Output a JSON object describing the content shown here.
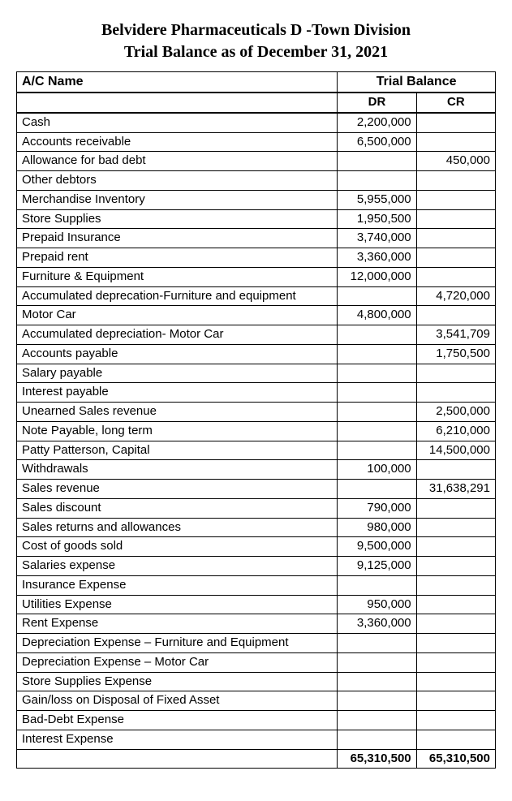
{
  "header": {
    "line1": "Belvidere Pharmaceuticals D -Town Division",
    "line2": "Trial Balance as of December 31, 2021"
  },
  "table": {
    "col_ac_name": "A/C Name",
    "col_trial_balance": "Trial Balance",
    "col_dr": "DR",
    "col_cr": "CR",
    "rows": [
      {
        "name": "Cash",
        "dr": "2,200,000",
        "cr": ""
      },
      {
        "name": "Accounts receivable",
        "dr": "6,500,000",
        "cr": ""
      },
      {
        "name": "Allowance for bad debt",
        "dr": "",
        "cr": "450,000"
      },
      {
        "name": "Other debtors",
        "dr": "",
        "cr": ""
      },
      {
        "name": "Merchandise Inventory",
        "dr": "5,955,000",
        "cr": ""
      },
      {
        "name": "Store Supplies",
        "dr": "1,950,500",
        "cr": ""
      },
      {
        "name": "Prepaid Insurance",
        "dr": "3,740,000",
        "cr": ""
      },
      {
        "name": "Prepaid rent",
        "dr": "3,360,000",
        "cr": ""
      },
      {
        "name": "Furniture & Equipment",
        "dr": "12,000,000",
        "cr": ""
      },
      {
        "name": "Accumulated deprecation-Furniture and equipment",
        "dr": "",
        "cr": "4,720,000"
      },
      {
        "name": "Motor Car",
        "dr": "4,800,000",
        "cr": ""
      },
      {
        "name": "Accumulated depreciation- Motor Car",
        "dr": "",
        "cr": "3,541,709"
      },
      {
        "name": "Accounts payable",
        "dr": "",
        "cr": "1,750,500"
      },
      {
        "name": "Salary payable",
        "dr": "",
        "cr": ""
      },
      {
        "name": "Interest payable",
        "dr": "",
        "cr": ""
      },
      {
        "name": "Unearned Sales revenue",
        "dr": "",
        "cr": "2,500,000"
      },
      {
        "name": "Note Payable, long term",
        "dr": "",
        "cr": "6,210,000"
      },
      {
        "name": "Patty Patterson, Capital",
        "dr": "",
        "cr": "14,500,000"
      },
      {
        "name": "Withdrawals",
        "dr": "100,000",
        "cr": ""
      },
      {
        "name": "Sales revenue",
        "dr": "",
        "cr": "31,638,291"
      },
      {
        "name": "Sales discount",
        "dr": "790,000",
        "cr": ""
      },
      {
        "name": "Sales returns and allowances",
        "dr": "980,000",
        "cr": ""
      },
      {
        "name": "Cost of goods sold",
        "dr": "9,500,000",
        "cr": ""
      },
      {
        "name": "Salaries expense",
        "dr": "9,125,000",
        "cr": ""
      },
      {
        "name": "Insurance Expense",
        "dr": "",
        "cr": ""
      },
      {
        "name": "Utilities Expense",
        "dr": "950,000",
        "cr": ""
      },
      {
        "name": "Rent Expense",
        "dr": "3,360,000",
        "cr": ""
      },
      {
        "name": "Depreciation Expense – Furniture and Equipment",
        "dr": "",
        "cr": ""
      },
      {
        "name": "Depreciation Expense – Motor Car",
        "dr": "",
        "cr": ""
      },
      {
        "name": "Store Supplies Expense",
        "dr": "",
        "cr": ""
      },
      {
        "name": "Gain/loss  on Disposal of Fixed Asset",
        "dr": "",
        "cr": ""
      },
      {
        "name": "Bad-Debt Expense",
        "dr": "",
        "cr": ""
      },
      {
        "name": "Interest Expense",
        "dr": "",
        "cr": ""
      }
    ],
    "totals": {
      "name": "",
      "dr": "65,310,500",
      "cr": "65,310,500"
    }
  },
  "style": {
    "text_color": "#000000",
    "border_color": "#000000",
    "background_color": "#ffffff",
    "title_font_family": "Times New Roman",
    "title_font_size_pt": 15,
    "body_font_family": "Arial",
    "body_font_size_pt": 11
  }
}
